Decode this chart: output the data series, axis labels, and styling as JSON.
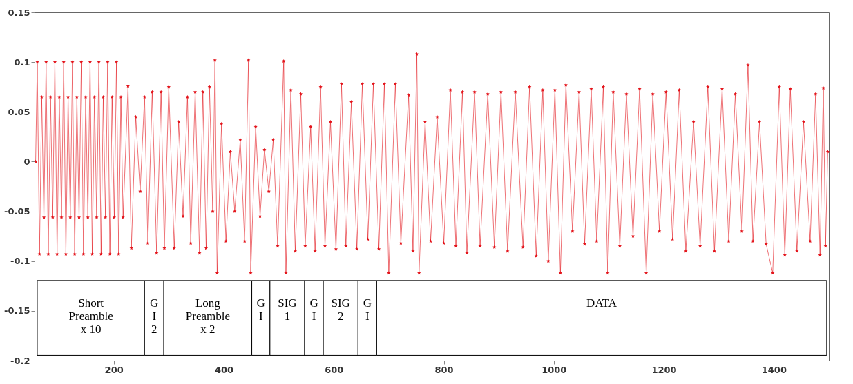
{
  "chart_data": {
    "type": "line",
    "color": "#e3141b",
    "marker": "star",
    "line_style": "solid",
    "grid": false,
    "xlim": [
      56,
      1500
    ],
    "ylim": [
      -0.2,
      0.15
    ],
    "xticks": [
      200,
      400,
      600,
      800,
      1000,
      1200,
      1400
    ],
    "yticks": [
      -0.2,
      -0.15,
      -0.1,
      -0.05,
      0,
      0.05,
      0.1,
      0.15
    ],
    "x": [
      58,
      61,
      65,
      69,
      73,
      77,
      81,
      85,
      89,
      93,
      97,
      101,
      105,
      109,
      113,
      117,
      121,
      125,
      129,
      133,
      137,
      141,
      145,
      149,
      153,
      157,
      161,
      165,
      169,
      173,
      177,
      181,
      185,
      189,
      193,
      197,
      201,
      205,
      209,
      213,
      217,
      226,
      232,
      240,
      248,
      256,
      262,
      270,
      278,
      286,
      292,
      300,
      310,
      318,
      326,
      334,
      340,
      348,
      356,
      362,
      368,
      374,
      380,
      384,
      388,
      396,
      404,
      412,
      420,
      430,
      438,
      445,
      449,
      458,
      466,
      474,
      482,
      490,
      498,
      509,
      513,
      522,
      530,
      540,
      548,
      558,
      566,
      576,
      584,
      594,
      604,
      614,
      622,
      632,
      642,
      652,
      662,
      672,
      682,
      692,
      700,
      712,
      722,
      736,
      744,
      751,
      755,
      766,
      776,
      788,
      800,
      812,
      822,
      834,
      842,
      856,
      866,
      880,
      892,
      904,
      916,
      930,
      944,
      956,
      968,
      980,
      990,
      1002,
      1012,
      1022,
      1034,
      1046,
      1056,
      1068,
      1078,
      1090,
      1098,
      1108,
      1120,
      1132,
      1144,
      1156,
      1168,
      1180,
      1192,
      1204,
      1216,
      1228,
      1240,
      1254,
      1266,
      1280,
      1292,
      1306,
      1318,
      1330,
      1342,
      1353,
      1362,
      1374,
      1386,
      1398,
      1410,
      1420,
      1430,
      1442,
      1454,
      1466,
      1476,
      1484,
      1490,
      1494,
      1498
    ],
    "values": [
      0,
      0.1,
      -0.093,
      0.065,
      -0.056,
      0.1,
      -0.093,
      0.065,
      -0.056,
      0.1,
      -0.093,
      0.065,
      -0.056,
      0.1,
      -0.093,
      0.065,
      -0.056,
      0.1,
      -0.093,
      0.065,
      -0.056,
      0.1,
      -0.093,
      0.065,
      -0.056,
      0.1,
      -0.093,
      0.065,
      -0.056,
      0.1,
      -0.093,
      0.065,
      -0.056,
      0.1,
      -0.093,
      0.065,
      -0.056,
      0.1,
      -0.093,
      0.065,
      -0.056,
      0.076,
      -0.087,
      0.045,
      -0.03,
      0.065,
      -0.082,
      0.07,
      -0.092,
      0.07,
      -0.087,
      0.075,
      -0.087,
      0.04,
      -0.055,
      0.065,
      -0.082,
      0.07,
      -0.092,
      0.07,
      -0.087,
      0.075,
      -0.05,
      0.102,
      -0.112,
      0.038,
      -0.08,
      0.01,
      -0.05,
      0.022,
      -0.08,
      0.102,
      -0.112,
      0.035,
      -0.055,
      0.012,
      -0.03,
      0.022,
      -0.085,
      0.101,
      -0.112,
      0.072,
      -0.09,
      0.068,
      -0.085,
      0.035,
      -0.09,
      0.075,
      -0.085,
      0.04,
      -0.088,
      0.078,
      -0.085,
      0.06,
      -0.088,
      0.078,
      -0.078,
      0.078,
      -0.088,
      0.078,
      -0.112,
      0.078,
      -0.082,
      0.067,
      -0.09,
      0.108,
      -0.112,
      0.04,
      -0.08,
      0.045,
      -0.082,
      0.072,
      -0.085,
      0.07,
      -0.092,
      0.07,
      -0.085,
      0.068,
      -0.086,
      0.07,
      -0.09,
      0.07,
      -0.086,
      0.075,
      -0.095,
      0.072,
      -0.1,
      0.072,
      -0.112,
      0.077,
      -0.07,
      0.07,
      -0.083,
      0.073,
      -0.08,
      0.075,
      -0.112,
      0.07,
      -0.085,
      0.068,
      -0.075,
      0.073,
      -0.112,
      0.068,
      -0.07,
      0.07,
      -0.078,
      0.072,
      -0.09,
      0.04,
      -0.085,
      0.075,
      -0.09,
      0.073,
      -0.08,
      0.068,
      -0.07,
      0.097,
      -0.08,
      0.04,
      -0.083,
      -0.112,
      0.075,
      -0.094,
      0.073,
      -0.09,
      0.04,
      -0.08,
      0.068,
      -0.094,
      0.074,
      -0.085,
      0.01
    ],
    "bands": [
      {
        "axis": "x",
        "from": 61,
        "to": 256,
        "label": "Short\nPreamble\nx 10"
      },
      {
        "axis": "x",
        "from": 256,
        "to": 291,
        "label": "G\nI\n2"
      },
      {
        "axis": "x",
        "from": 291,
        "to": 451,
        "label": "Long\nPreamble\nx 2"
      },
      {
        "axis": "x",
        "from": 451,
        "to": 484,
        "label": "G\nI"
      },
      {
        "axis": "x",
        "from": 484,
        "to": 547,
        "label": "SIG\n1"
      },
      {
        "axis": "x",
        "from": 547,
        "to": 581,
        "label": "G\nI"
      },
      {
        "axis": "x",
        "from": 581,
        "to": 644,
        "label": "SIG\n2"
      },
      {
        "axis": "x",
        "from": 644,
        "to": 678,
        "label": "G\nI"
      },
      {
        "axis": "x",
        "from": 678,
        "to": 1496,
        "label": "DATA"
      }
    ]
  }
}
